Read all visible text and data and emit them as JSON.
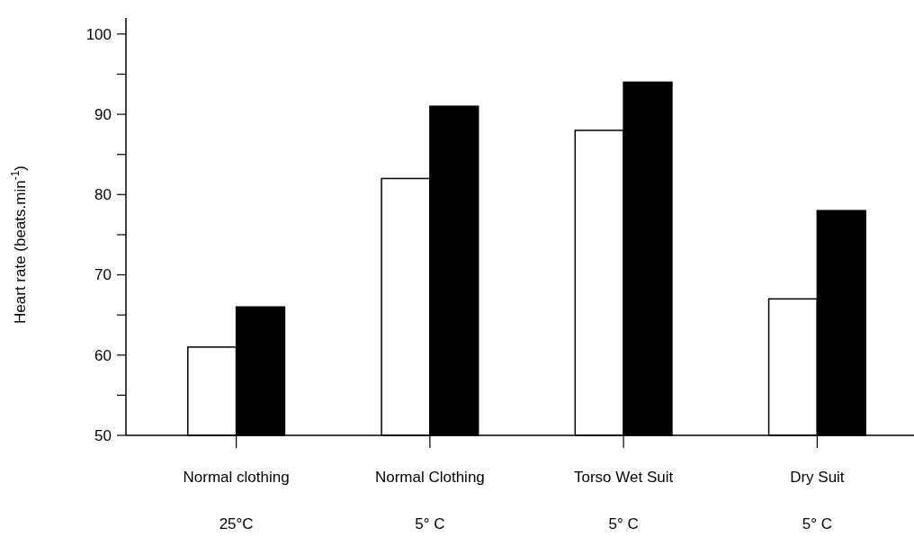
{
  "chart_data": {
    "type": "bar",
    "ylabel": "Heart rate (beats.min$^{-1}$)",
    "categories": [
      "Normal clothing\n25°C",
      "Normal Clothing\n5° C",
      "Torso Wet Suit\n5° C",
      "Dry Suit\n5° C"
    ],
    "series": [
      {
        "color": "#ffffff",
        "values": [
          61,
          82,
          88,
          67
        ]
      },
      {
        "color": "#000000",
        "values": [
          66,
          91,
          94,
          78
        ]
      }
    ],
    "ylim": [
      50,
      102
    ],
    "yticks": [
      50,
      {
        "value": 55,
        "label": null
      },
      60,
      {
        "value": 65,
        "label": null
      },
      70,
      {
        "value": 75,
        "label": null
      },
      80,
      {
        "value": 85,
        "label": null
      },
      90,
      {
        "value": 95,
        "label": null
      },
      100
    ],
    "grid": false
  }
}
